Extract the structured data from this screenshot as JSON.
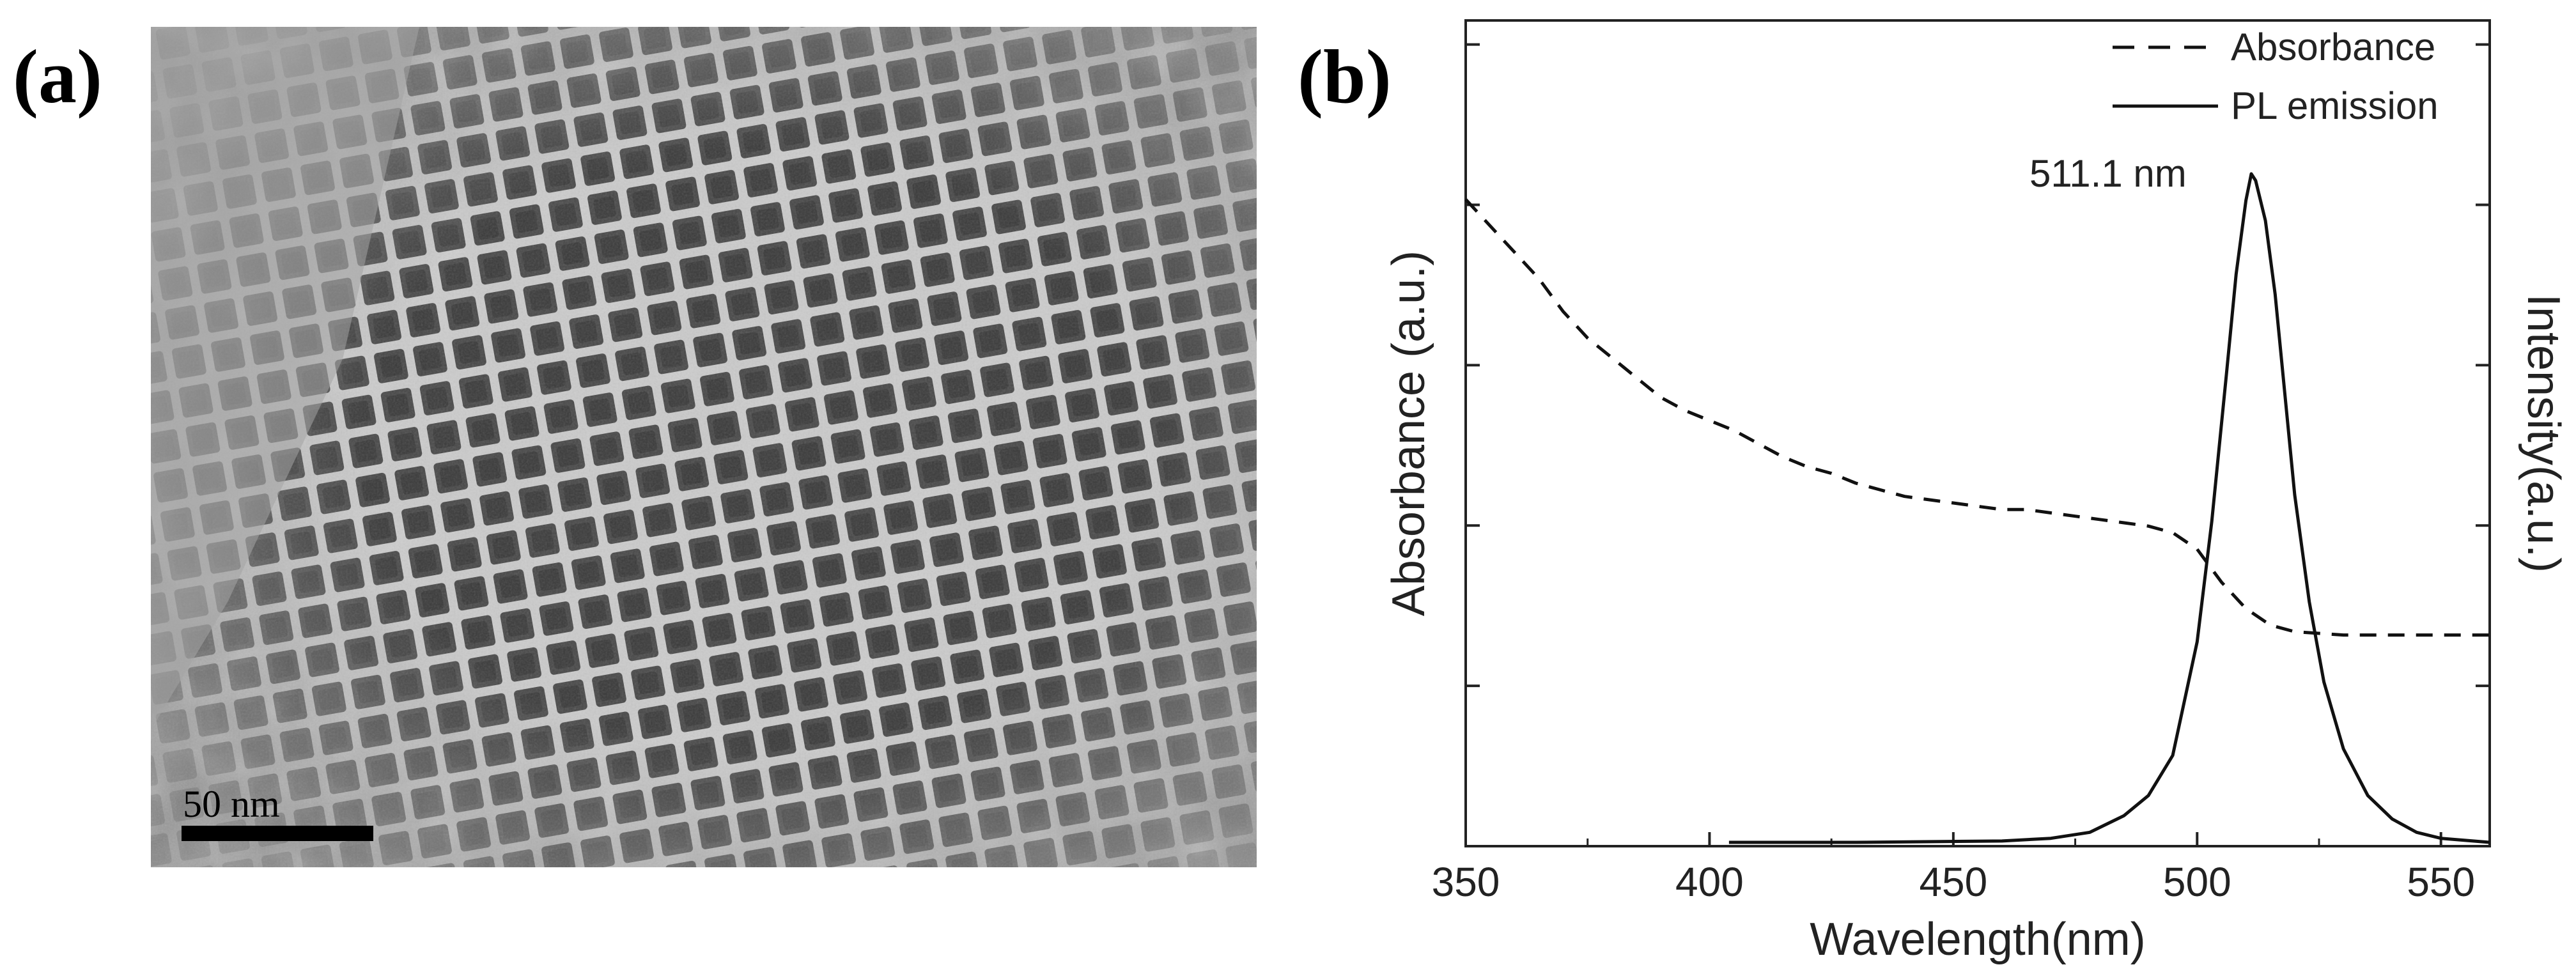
{
  "panels": {
    "a": {
      "label": "(a)",
      "scale_bar": {
        "text": "50 nm",
        "length_nm": 50
      }
    },
    "b": {
      "label": "(b)"
    }
  },
  "chart_data": {
    "type": "line",
    "xlabel": "Wavelength(nm)",
    "ylabel_left": "Absorbance (a.u.)",
    "ylabel_right": "Intensity(a.u.)",
    "xlim": [
      350,
      560
    ],
    "xticks": [
      350,
      400,
      450,
      500,
      550
    ],
    "left_ticks_shown_without_labels": true,
    "right_ticks_shown_without_labels": true,
    "legend_position": "top-right",
    "annotation": {
      "text": "511.1 nm",
      "x": 511.1
    },
    "series": [
      {
        "name": "Absorbance",
        "style": "dashed",
        "axis": "left",
        "x": [
          350,
          355,
          360,
          365,
          370,
          375,
          380,
          385,
          390,
          395,
          400,
          405,
          410,
          415,
          420,
          425,
          430,
          435,
          440,
          445,
          450,
          455,
          460,
          465,
          470,
          475,
          480,
          485,
          490,
          495,
          500,
          505,
          510,
          515,
          520,
          530,
          540,
          560
        ],
        "y": [
          0.98,
          0.94,
          0.9,
          0.86,
          0.81,
          0.77,
          0.74,
          0.71,
          0.68,
          0.66,
          0.645,
          0.63,
          0.61,
          0.59,
          0.575,
          0.565,
          0.55,
          0.54,
          0.53,
          0.525,
          0.52,
          0.515,
          0.51,
          0.51,
          0.505,
          0.5,
          0.495,
          0.49,
          0.485,
          0.475,
          0.45,
          0.4,
          0.36,
          0.335,
          0.325,
          0.32,
          0.32,
          0.32
        ]
      },
      {
        "name": "PL emission",
        "style": "solid",
        "axis": "right",
        "x": [
          404,
          430,
          460,
          470,
          478,
          485,
          490,
          495,
          500,
          503,
          506,
          508,
          510,
          511.1,
          512,
          514,
          516,
          518,
          520,
          523,
          526,
          530,
          535,
          540,
          545,
          550,
          560
        ],
        "y": [
          0.0,
          0.0,
          0.002,
          0.006,
          0.015,
          0.04,
          0.07,
          0.13,
          0.3,
          0.48,
          0.7,
          0.85,
          0.96,
          1.0,
          0.99,
          0.93,
          0.82,
          0.67,
          0.52,
          0.36,
          0.24,
          0.14,
          0.07,
          0.035,
          0.015,
          0.006,
          0.0
        ]
      }
    ]
  }
}
